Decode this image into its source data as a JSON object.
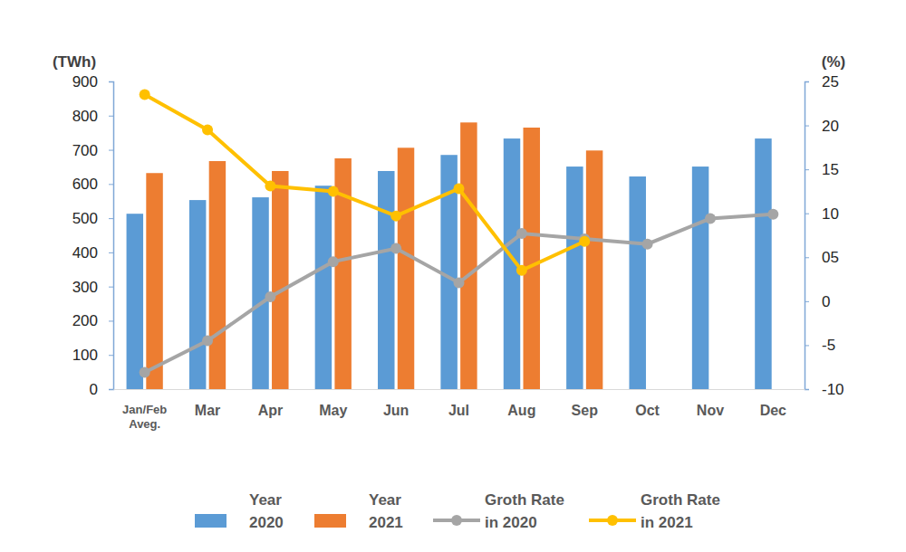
{
  "chart_data": {
    "type": "bar",
    "y_label": "(TWh)",
    "y2_label": "(%)",
    "categories": [
      "Jan/Feb Aveg.",
      "Mar",
      "Apr",
      "May",
      "Jun",
      "Jul",
      "Aug",
      "Sep",
      "Oct",
      "Nov",
      "Dec"
    ],
    "series": [
      {
        "name": "Year 2020",
        "type": "bar",
        "color": "#5b9bd5",
        "values": [
          513,
          553,
          561,
          595,
          638,
          685,
          733,
          651,
          622,
          651,
          733
        ]
      },
      {
        "name": "Year 2021",
        "type": "bar",
        "color": "#ed7d31",
        "values": [
          632,
          667,
          638,
          675,
          706,
          780,
          765,
          698,
          null,
          null,
          null
        ]
      },
      {
        "name": "Groth Rate in 2020",
        "type": "line",
        "axis": "y2",
        "color": "#a5a5a5",
        "marker": "circle",
        "line_style": "solid",
        "values": [
          -8.1,
          -4.5,
          0.5,
          4.5,
          6.0,
          2.1,
          7.7,
          7.1,
          6.5,
          9.4,
          9.9
        ]
      },
      {
        "name": "Groth Rate in 2021",
        "type": "line",
        "axis": "y2",
        "color": "#ffc000",
        "marker": "circle",
        "line_style": "solid",
        "values": [
          23.5,
          19.5,
          13.1,
          12.5,
          9.7,
          12.8,
          3.5,
          6.8,
          null,
          null,
          null
        ]
      }
    ],
    "ylim": [
      0,
      900
    ],
    "yticks": [
      0,
      100,
      200,
      300,
      400,
      500,
      600,
      700,
      800,
      900
    ],
    "y2lim": [
      -10,
      25
    ],
    "y2ticks": [
      -10,
      -5,
      0,
      {
        "value": 5,
        "label": "05"
      },
      10,
      15,
      20,
      25
    ],
    "grid": false,
    "legend": "bottom"
  }
}
